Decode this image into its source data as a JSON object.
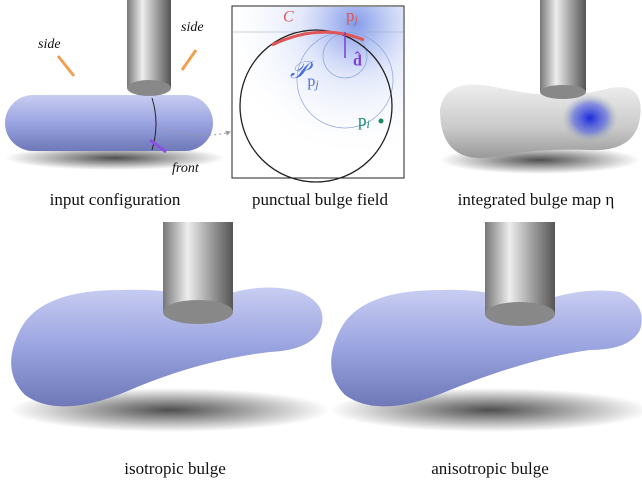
{
  "figure": {
    "panels": [
      {
        "caption": "input configuration",
        "labels": [
          "side",
          "side",
          "front"
        ]
      },
      {
        "caption": "punctual bulge field",
        "curve": "C",
        "point_j": {
          "main": "p",
          "sub": "j"
        },
        "field": {
          "main": "𝒫",
          "sub_main": "p",
          "sub_sub": "j"
        },
        "direction": "d̂",
        "point_i": {
          "main": "p",
          "sub": "i"
        }
      },
      {
        "caption": "integrated bulge map η"
      },
      {
        "caption": "isotropic bulge"
      },
      {
        "caption": "anisotropic bulge"
      }
    ]
  }
}
